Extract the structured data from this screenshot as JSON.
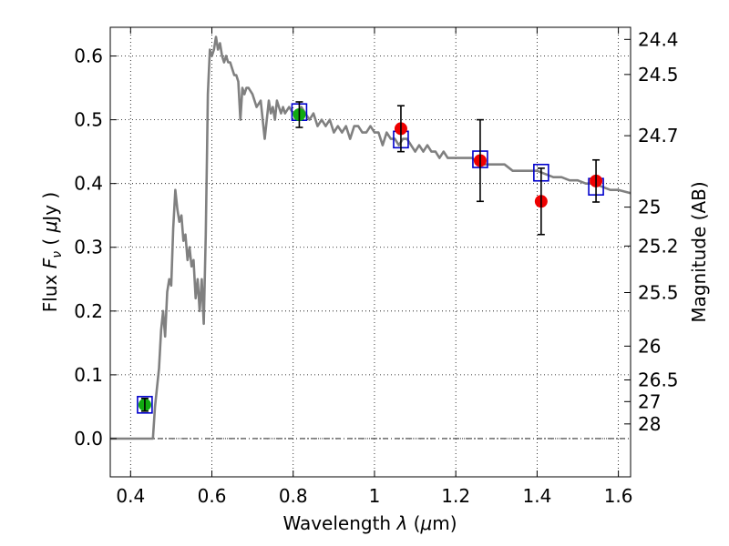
{
  "chart_data": {
    "type": "scatter",
    "xlabel": "Wavelength  λ (μm)",
    "ylabel": "Flux  F_ν ( μJy )",
    "ylabel_right": "Magnitude (AB)",
    "xlim": [
      0.35,
      1.63
    ],
    "ylim": [
      -0.06,
      0.645
    ],
    "x_ticks": [
      0.4,
      0.6,
      0.8,
      1.0,
      1.2,
      1.4,
      1.6
    ],
    "x_tick_labels": [
      "0.4",
      "0.6",
      "0.8",
      "1",
      "1.2",
      "1.4",
      "1.6"
    ],
    "y_ticks": [
      0.0,
      0.1,
      0.2,
      0.3,
      0.4,
      0.5,
      0.6
    ],
    "y_tick_labels": [
      "0.0",
      "0.1",
      "0.2",
      "0.3",
      "0.4",
      "0.5",
      "0.6"
    ],
    "right_ticks": [
      {
        "label": "24.4",
        "flux": 0.626
      },
      {
        "label": "24.5",
        "flux": 0.571
      },
      {
        "label": "24.7",
        "flux": 0.475
      },
      {
        "label": "25",
        "flux": 0.363
      },
      {
        "label": "25.2",
        "flux": 0.302
      },
      {
        "label": "25.5",
        "flux": 0.229
      },
      {
        "label": "26",
        "flux": 0.145
      },
      {
        "label": "26.5",
        "flux": 0.092
      },
      {
        "label": "27",
        "flux": 0.058
      },
      {
        "label": "28",
        "flux": 0.023
      }
    ],
    "grid": true,
    "zero_line": true,
    "colors": {
      "model": "#808080",
      "model_photometry": "#0000cc",
      "optical_points": "#11aa11",
      "nir_points": "#ee0000",
      "errorbar": "#000000"
    },
    "series": [
      {
        "kind": "model_spectrum",
        "x": [
          0.35,
          0.455,
          0.46,
          0.47,
          0.475,
          0.48,
          0.485,
          0.49,
          0.495,
          0.5,
          0.505,
          0.51,
          0.515,
          0.52,
          0.525,
          0.53,
          0.535,
          0.54,
          0.545,
          0.55,
          0.555,
          0.56,
          0.565,
          0.57,
          0.575,
          0.58,
          0.585,
          0.588,
          0.59,
          0.595,
          0.6,
          0.605,
          0.61,
          0.615,
          0.62,
          0.625,
          0.63,
          0.635,
          0.64,
          0.645,
          0.65,
          0.655,
          0.66,
          0.665,
          0.67,
          0.675,
          0.68,
          0.685,
          0.69,
          0.7,
          0.71,
          0.72,
          0.73,
          0.74,
          0.745,
          0.75,
          0.755,
          0.76,
          0.765,
          0.77,
          0.775,
          0.78,
          0.79,
          0.8,
          0.81,
          0.82,
          0.83,
          0.84,
          0.85,
          0.86,
          0.87,
          0.88,
          0.89,
          0.9,
          0.91,
          0.92,
          0.93,
          0.94,
          0.95,
          0.96,
          0.97,
          0.98,
          0.99,
          1.0,
          1.01,
          1.02,
          1.03,
          1.04,
          1.05,
          1.06,
          1.07,
          1.08,
          1.09,
          1.1,
          1.11,
          1.12,
          1.13,
          1.14,
          1.15,
          1.16,
          1.17,
          1.18,
          1.2,
          1.22,
          1.24,
          1.26,
          1.28,
          1.3,
          1.32,
          1.34,
          1.36,
          1.38,
          1.4,
          1.42,
          1.44,
          1.46,
          1.48,
          1.5,
          1.52,
          1.54,
          1.56,
          1.58,
          1.6,
          1.63
        ],
        "y": [
          0.0,
          0.0,
          0.05,
          0.11,
          0.17,
          0.2,
          0.16,
          0.23,
          0.25,
          0.24,
          0.33,
          0.39,
          0.36,
          0.34,
          0.35,
          0.31,
          0.32,
          0.28,
          0.3,
          0.27,
          0.28,
          0.22,
          0.25,
          0.2,
          0.25,
          0.18,
          0.32,
          0.45,
          0.54,
          0.61,
          0.6,
          0.61,
          0.63,
          0.61,
          0.62,
          0.6,
          0.59,
          0.6,
          0.59,
          0.59,
          0.58,
          0.57,
          0.57,
          0.56,
          0.5,
          0.55,
          0.54,
          0.55,
          0.55,
          0.54,
          0.52,
          0.53,
          0.47,
          0.53,
          0.51,
          0.52,
          0.5,
          0.53,
          0.52,
          0.51,
          0.52,
          0.51,
          0.52,
          0.51,
          0.51,
          0.52,
          0.51,
          0.5,
          0.51,
          0.49,
          0.5,
          0.49,
          0.5,
          0.48,
          0.49,
          0.48,
          0.49,
          0.47,
          0.49,
          0.49,
          0.48,
          0.48,
          0.49,
          0.48,
          0.48,
          0.46,
          0.48,
          0.47,
          0.47,
          0.46,
          0.47,
          0.47,
          0.46,
          0.45,
          0.46,
          0.45,
          0.46,
          0.45,
          0.45,
          0.44,
          0.45,
          0.44,
          0.44,
          0.44,
          0.44,
          0.43,
          0.43,
          0.43,
          0.43,
          0.42,
          0.42,
          0.42,
          0.42,
          0.415,
          0.41,
          0.41,
          0.405,
          0.405,
          0.4,
          0.4,
          0.395,
          0.39,
          0.39,
          0.385
        ]
      },
      {
        "kind": "model_photometry",
        "x": [
          0.435,
          0.815,
          1.065,
          1.26,
          1.41,
          1.545
        ],
        "y": [
          0.053,
          0.512,
          0.469,
          0.438,
          0.417,
          0.395
        ]
      },
      {
        "kind": "observed_optical",
        "x": [
          0.435,
          0.815
        ],
        "y": [
          0.053,
          0.508
        ],
        "err": [
          0.01,
          0.02
        ]
      },
      {
        "kind": "observed_nir",
        "x": [
          1.065,
          1.26,
          1.41,
          1.545
        ],
        "y": [
          0.486,
          0.436,
          0.372,
          0.404
        ],
        "err": [
          0.036,
          0.064,
          0.052,
          0.033
        ]
      }
    ]
  }
}
